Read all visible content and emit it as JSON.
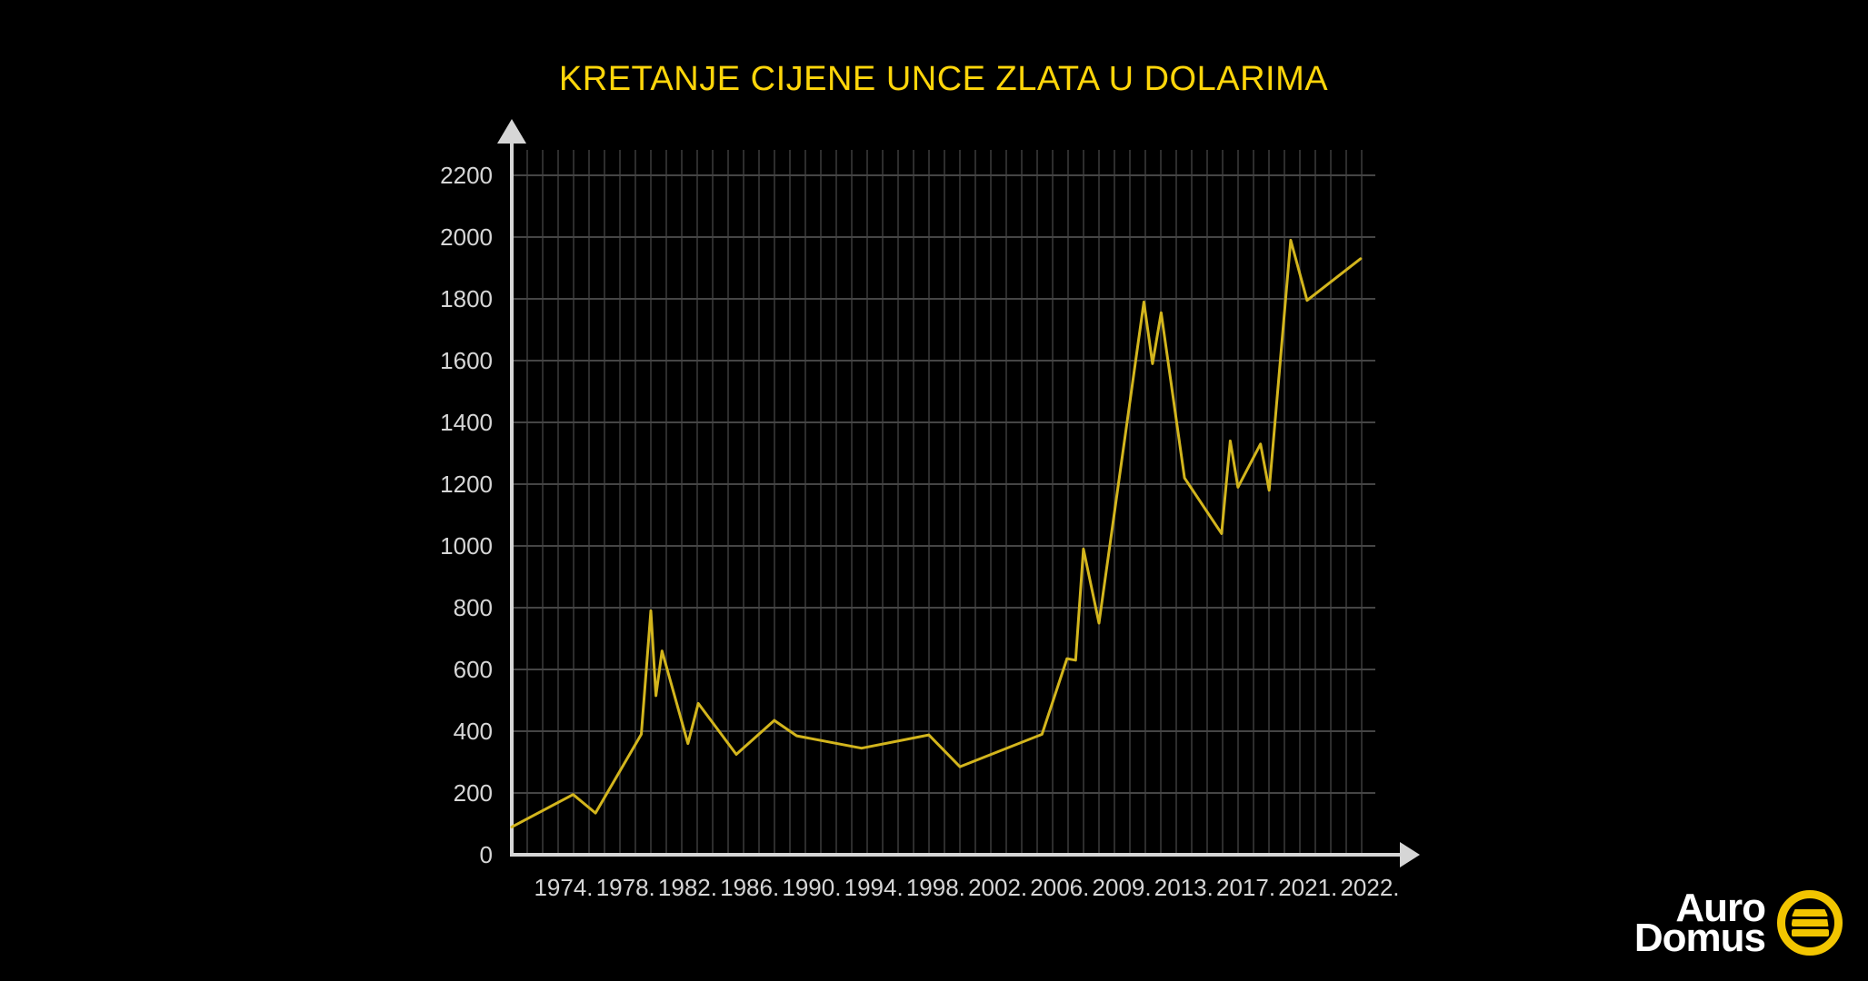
{
  "title": {
    "text": "KRETANJE CIJENE UNCE ZLATA U DOLARIMA",
    "color": "#ffd60a"
  },
  "logo": {
    "line1": "Auro",
    "line2": "Domus",
    "icon": "gold-bars-in-ring-icon",
    "yellow": "#f2c500",
    "text_color": "#ffffff"
  },
  "chart_data": {
    "type": "line",
    "title": "KRETANJE CIJENE UNCE ZLATA U DOLARIMA",
    "ylabel": "",
    "xlabel": "",
    "grid": true,
    "legend": "none",
    "background": "#000000",
    "line_color": "#d3b51d",
    "axis_color": "#d6d6d6",
    "label_color": "#d6d6d6",
    "grid_color_vertical": "#2d2d2d",
    "grid_color_horizontal": "#454545",
    "ylim": [
      0,
      2300
    ],
    "y_ticks": [
      0,
      200,
      400,
      600,
      800,
      1000,
      1200,
      1400,
      1600,
      1800,
      2000,
      2200
    ],
    "x_tick_labels": [
      "1974.",
      "1978.",
      "1982.",
      "1986.",
      "1990.",
      "1994.",
      "1998.",
      "2002.",
      "2006.",
      "2009.",
      "2013.",
      "2017.",
      "2021.",
      "2022."
    ],
    "points_note": "x_pct = horizontal position along plot area (0 = y-axis, 100 = right edge); value = USD per ounce read from chart",
    "points": [
      {
        "x_pct": 0.0,
        "value": 90
      },
      {
        "x_pct": 7.1,
        "value": 195
      },
      {
        "x_pct": 9.7,
        "value": 135
      },
      {
        "x_pct": 15.0,
        "value": 390
      },
      {
        "x_pct": 16.1,
        "value": 790
      },
      {
        "x_pct": 16.7,
        "value": 515
      },
      {
        "x_pct": 17.4,
        "value": 660
      },
      {
        "x_pct": 20.4,
        "value": 360
      },
      {
        "x_pct": 21.6,
        "value": 490
      },
      {
        "x_pct": 26.0,
        "value": 325
      },
      {
        "x_pct": 30.4,
        "value": 435
      },
      {
        "x_pct": 33.0,
        "value": 385
      },
      {
        "x_pct": 40.5,
        "value": 345
      },
      {
        "x_pct": 48.3,
        "value": 388
      },
      {
        "x_pct": 51.9,
        "value": 285
      },
      {
        "x_pct": 61.4,
        "value": 390
      },
      {
        "x_pct": 64.3,
        "value": 635
      },
      {
        "x_pct": 65.3,
        "value": 630
      },
      {
        "x_pct": 66.2,
        "value": 990
      },
      {
        "x_pct": 68.0,
        "value": 750
      },
      {
        "x_pct": 73.2,
        "value": 1790
      },
      {
        "x_pct": 74.2,
        "value": 1590
      },
      {
        "x_pct": 75.2,
        "value": 1755
      },
      {
        "x_pct": 77.9,
        "value": 1220
      },
      {
        "x_pct": 82.2,
        "value": 1040
      },
      {
        "x_pct": 83.2,
        "value": 1340
      },
      {
        "x_pct": 84.1,
        "value": 1190
      },
      {
        "x_pct": 86.7,
        "value": 1330
      },
      {
        "x_pct": 87.7,
        "value": 1180
      },
      {
        "x_pct": 90.2,
        "value": 1990
      },
      {
        "x_pct": 92.1,
        "value": 1795
      },
      {
        "x_pct": 98.3,
        "value": 1930
      }
    ]
  }
}
